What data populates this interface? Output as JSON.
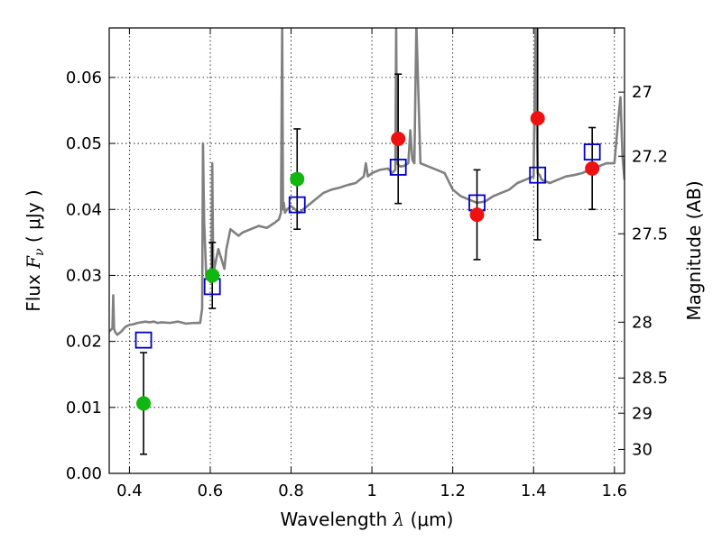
{
  "chart_data": {
    "type": "scatter",
    "xlabel": {
      "text": "Wavelength",
      "math": "λ",
      "unit_open": "(",
      "unit": "μm",
      "unit_close": ")"
    },
    "ylabel": {
      "text": "Flux",
      "math": "F",
      "sub": "ν",
      "unit_open": "(",
      "unit": "μJy",
      "unit_close": ")"
    },
    "y2label": "Magnitude (AB)",
    "xlim": [
      0.35,
      1.625
    ],
    "ylim": [
      0.0,
      0.0675
    ],
    "grid": true,
    "x_ticks": [
      {
        "value": 0.4,
        "label": "0.4"
      },
      {
        "value": 0.6,
        "label": "0.6"
      },
      {
        "value": 0.8,
        "label": "0.8"
      },
      {
        "value": 1.0,
        "label": "1"
      },
      {
        "value": 1.2,
        "label": "1.2"
      },
      {
        "value": 1.4,
        "label": "1.4"
      },
      {
        "value": 1.6,
        "label": "1.6"
      }
    ],
    "y_ticks": [
      {
        "value": 0.0,
        "label": "0.00"
      },
      {
        "value": 0.01,
        "label": "0.01"
      },
      {
        "value": 0.02,
        "label": "0.02"
      },
      {
        "value": 0.03,
        "label": "0.03"
      },
      {
        "value": 0.04,
        "label": "0.04"
      },
      {
        "value": 0.05,
        "label": "0.05"
      },
      {
        "value": 0.06,
        "label": "0.06"
      }
    ],
    "y2_ticks": [
      {
        "flux": 0.05778,
        "label": "27"
      },
      {
        "flux": 0.04806,
        "label": "27.2"
      },
      {
        "flux": 0.03631,
        "label": "27.5"
      },
      {
        "flux": 0.02291,
        "label": "28"
      },
      {
        "flux": 0.01445,
        "label": "28.5"
      },
      {
        "flux": 0.00912,
        "label": "29"
      },
      {
        "flux": 0.00363,
        "label": "30"
      }
    ],
    "colors": {
      "green": "#11b611",
      "red": "#ee1111",
      "blue": "#0000cc",
      "model": "#808080",
      "errorbar": "#000000"
    },
    "series": [
      {
        "style": "green-circle",
        "points": [
          {
            "x": 0.435,
            "y": 0.0106,
            "err": 0.0077
          },
          {
            "x": 0.605,
            "y": 0.03,
            "err": 0.005
          },
          {
            "x": 0.815,
            "y": 0.0446,
            "err": 0.0076
          }
        ]
      },
      {
        "style": "red-circle",
        "points": [
          {
            "x": 1.065,
            "y": 0.0507,
            "err": 0.0098
          },
          {
            "x": 1.26,
            "y": 0.0392,
            "err": 0.0068
          },
          {
            "x": 1.41,
            "y": 0.0538,
            "err": 0.0184
          },
          {
            "x": 1.545,
            "y": 0.0462,
            "err": 0.0062
          }
        ]
      },
      {
        "style": "blue-square",
        "points": [
          {
            "x": 0.435,
            "y": 0.0202
          },
          {
            "x": 0.605,
            "y": 0.0283
          },
          {
            "x": 0.815,
            "y": 0.0407
          },
          {
            "x": 1.065,
            "y": 0.0464
          },
          {
            "x": 1.26,
            "y": 0.041
          },
          {
            "x": 1.41,
            "y": 0.0452
          },
          {
            "x": 1.545,
            "y": 0.0487
          }
        ]
      },
      {
        "style": "model-spectrum",
        "x": [
          0.35,
          0.355,
          0.358,
          0.36,
          0.362,
          0.365,
          0.37,
          0.38,
          0.39,
          0.4,
          0.41,
          0.42,
          0.43,
          0.44,
          0.45,
          0.46,
          0.47,
          0.48,
          0.5,
          0.52,
          0.54,
          0.56,
          0.575,
          0.58,
          0.582,
          0.585,
          0.59,
          0.595,
          0.6,
          0.603,
          0.605,
          0.607,
          0.61,
          0.62,
          0.63,
          0.635,
          0.64,
          0.65,
          0.66,
          0.67,
          0.68,
          0.7,
          0.72,
          0.74,
          0.76,
          0.77,
          0.775,
          0.778,
          0.78,
          0.782,
          0.785,
          0.79,
          0.8,
          0.81,
          0.82,
          0.83,
          0.84,
          0.85,
          0.86,
          0.87,
          0.88,
          0.9,
          0.92,
          0.94,
          0.96,
          0.98,
          0.985,
          0.99,
          1.0,
          1.02,
          1.04,
          1.05,
          1.058,
          1.06,
          1.062,
          1.065,
          1.07,
          1.08,
          1.09,
          1.095,
          1.1,
          1.105,
          1.11,
          1.12,
          1.14,
          1.16,
          1.18,
          1.2,
          1.22,
          1.24,
          1.26,
          1.28,
          1.3,
          1.32,
          1.34,
          1.36,
          1.38,
          1.4,
          1.405,
          1.41,
          1.415,
          1.42,
          1.44,
          1.46,
          1.48,
          1.5,
          1.52,
          1.54,
          1.56,
          1.58,
          1.6,
          1.61,
          1.615,
          1.62,
          1.625
        ],
        "y": [
          0.0215,
          0.0218,
          0.022,
          0.027,
          0.0219,
          0.0214,
          0.021,
          0.0215,
          0.0222,
          0.0225,
          0.0226,
          0.0228,
          0.0229,
          0.023,
          0.0229,
          0.023,
          0.0228,
          0.0229,
          0.0228,
          0.023,
          0.0227,
          0.0228,
          0.0228,
          0.025,
          0.05,
          0.038,
          0.03,
          0.03,
          0.029,
          0.03,
          0.047,
          0.033,
          0.031,
          0.034,
          0.032,
          0.031,
          0.034,
          0.037,
          0.0365,
          0.036,
          0.0365,
          0.037,
          0.0375,
          0.0372,
          0.038,
          0.0385,
          0.0395,
          0.068,
          0.04,
          0.041,
          0.0395,
          0.04,
          0.0405,
          0.04,
          0.0395,
          0.04,
          0.0405,
          0.041,
          0.0415,
          0.042,
          0.0425,
          0.043,
          0.0433,
          0.0437,
          0.044,
          0.045,
          0.047,
          0.045,
          0.0455,
          0.046,
          0.0462,
          0.0455,
          0.046,
          0.068,
          0.047,
          0.0468,
          0.0465,
          0.0466,
          0.047,
          0.052,
          0.0475,
          0.047,
          0.068,
          0.047,
          0.0465,
          0.046,
          0.0455,
          0.043,
          0.042,
          0.0415,
          0.041,
          0.0412,
          0.042,
          0.0425,
          0.043,
          0.044,
          0.0445,
          0.045,
          0.068,
          0.0455,
          0.0452,
          0.0445,
          0.044,
          0.0445,
          0.045,
          0.0452,
          0.0455,
          0.046,
          0.0465,
          0.047,
          0.047,
          0.054,
          0.057,
          0.048,
          0.0445
        ]
      }
    ]
  }
}
